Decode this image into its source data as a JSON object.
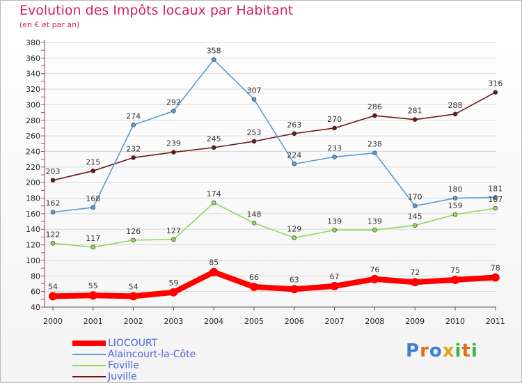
{
  "title": "Evolution des Impôts locaux par Habitant",
  "subtitle": "(en € et par an)",
  "logo": {
    "p": "P",
    "r": "r",
    "o": "o",
    "x": "x",
    "i1": "i",
    "t": "t",
    "i2": "i"
  },
  "colors": {
    "title": "#d11f5f",
    "axis_label": "#222222",
    "legend_text": "#4a5fe0"
  },
  "chart_data": {
    "type": "line",
    "title": "Evolution des Impôts locaux par Habitant",
    "xlabel": "",
    "ylabel": "(en € et par an)",
    "x": [
      "2000",
      "2001",
      "2002",
      "2003",
      "2004",
      "2005",
      "2006",
      "2007",
      "2008",
      "2009",
      "2010",
      "2011"
    ],
    "ylim": [
      40,
      380
    ],
    "yticks": [
      40,
      60,
      80,
      100,
      120,
      140,
      160,
      180,
      200,
      220,
      240,
      260,
      280,
      300,
      320,
      340,
      360,
      380
    ],
    "grid": true,
    "legend_position": "bottom-left",
    "series": [
      {
        "name": "Juville",
        "color": "#6b1a1a",
        "values": [
          203,
          215,
          232,
          239,
          245,
          253,
          263,
          270,
          286,
          281,
          288,
          316
        ]
      },
      {
        "name": "Alaincourt-la-Côte",
        "color": "#5a9bd4",
        "values": [
          162,
          168,
          274,
          292,
          358,
          307,
          224,
          233,
          238,
          170,
          180,
          181
        ]
      },
      {
        "name": "Foville",
        "color": "#8fd65a",
        "values": [
          122,
          117,
          126,
          127,
          174,
          148,
          129,
          139,
          139,
          145,
          159,
          167
        ]
      },
      {
        "name": "LIOCOURT",
        "color": "#ff0000",
        "values": [
          54,
          55,
          54,
          59,
          85,
          66,
          63,
          67,
          76,
          72,
          75,
          78
        ]
      }
    ]
  }
}
